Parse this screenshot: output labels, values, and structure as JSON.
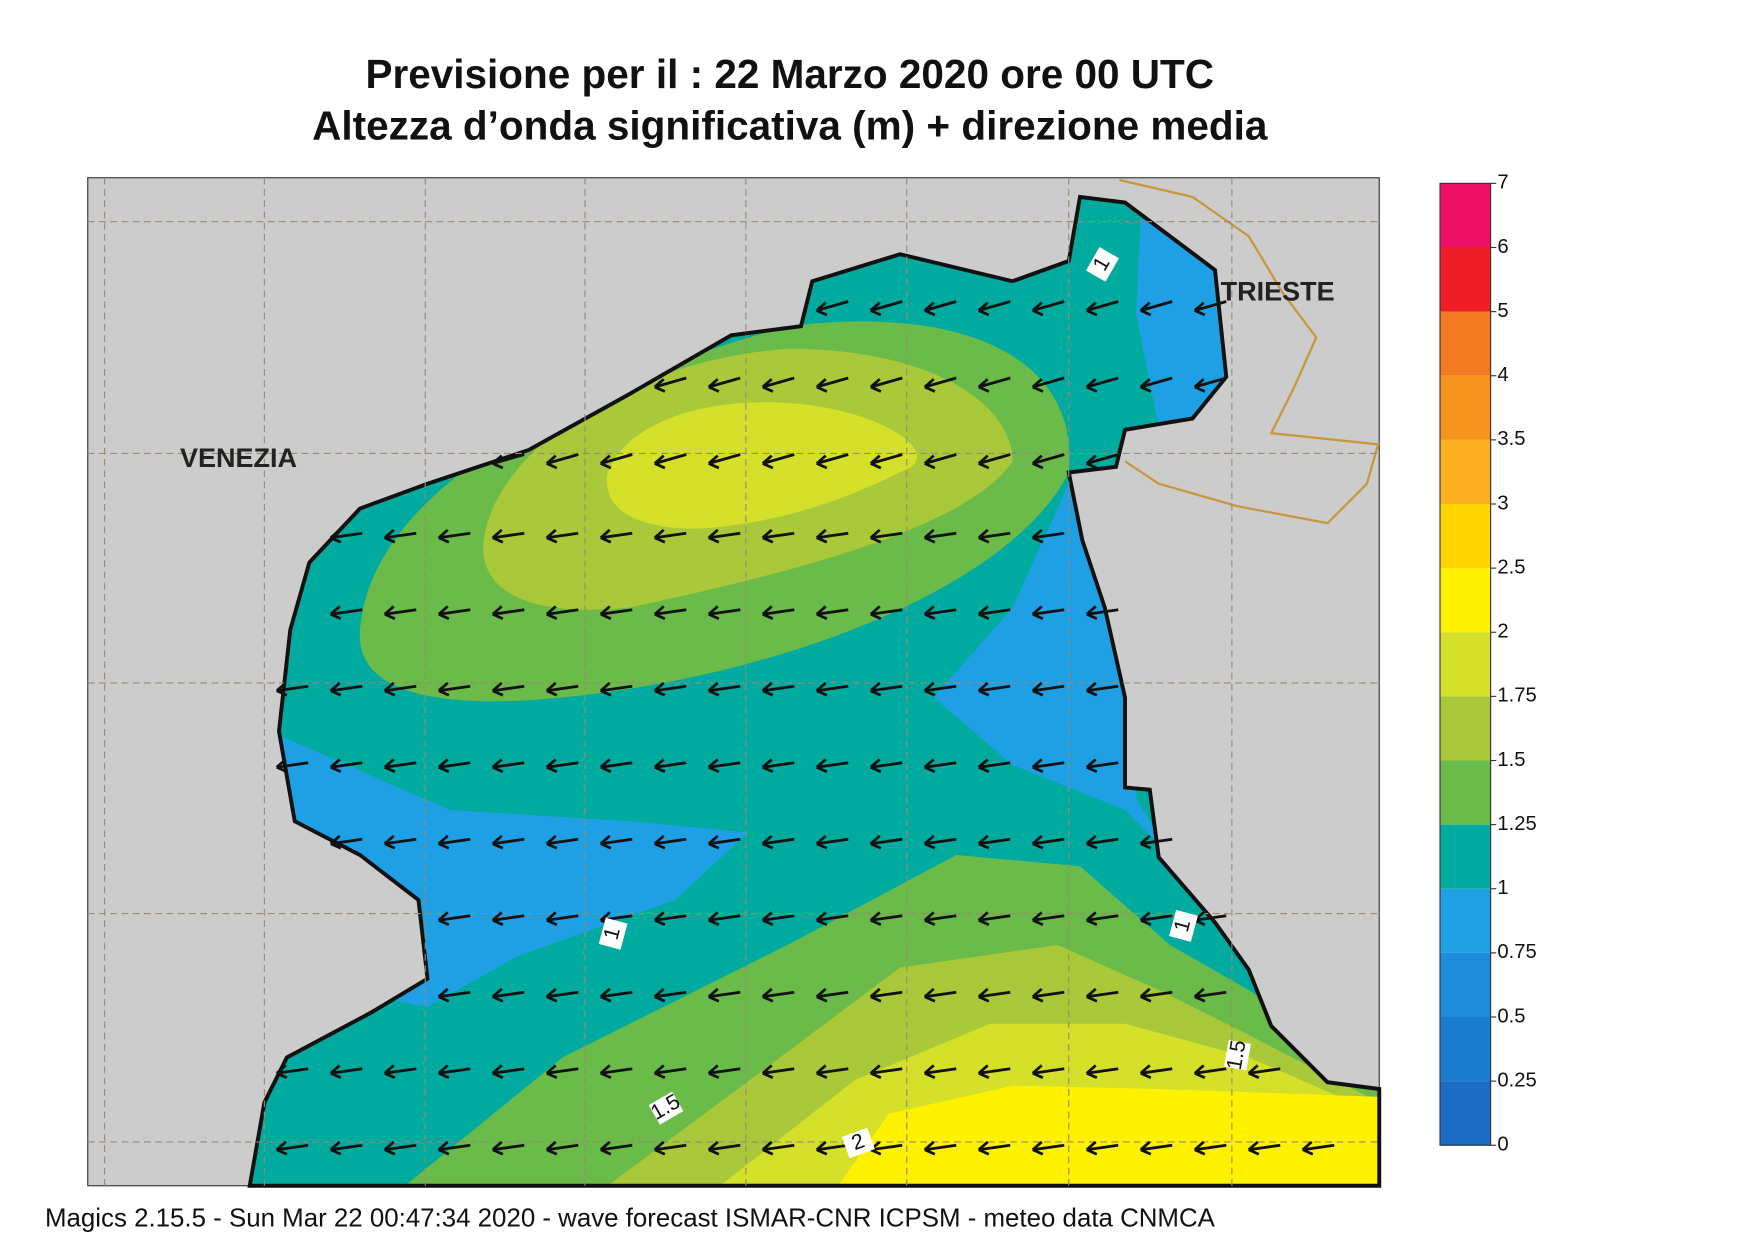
{
  "header": {
    "title": "Previsione per il  :  22   Marzo   2020   ore 00 UTC",
    "subtitle": "Altezza d’onda significativa (m) + direzione media"
  },
  "places": [
    "VENEZIA",
    "TRIESTE"
  ],
  "contour_labels": [
    "1",
    "1",
    "1",
    "1.5",
    "1.5",
    "2"
  ],
  "colorbar": {
    "levels": [
      0,
      0.25,
      0.5,
      0.75,
      1,
      1.25,
      1.5,
      1.75,
      2,
      2.5,
      3,
      3.5,
      4,
      5,
      6,
      7
    ],
    "colors": [
      "#1b6cc2",
      "#1a7ccf",
      "#1d8cda",
      "#1fa0e4",
      "#00aa9e",
      "#6bbb4a",
      "#a9c93b",
      "#d5e02a",
      "#fff200",
      "#ffd400",
      "#fdb022",
      "#f7941d",
      "#f37a21",
      "#ed1f24",
      "#ec1067"
    ]
  },
  "footer": "Magics 2.15.5 - Sun Mar 22 00:47:34 2020 - wave forecast  ISMAR-CNR  ICPSM - meteo data   CNMCA"
}
